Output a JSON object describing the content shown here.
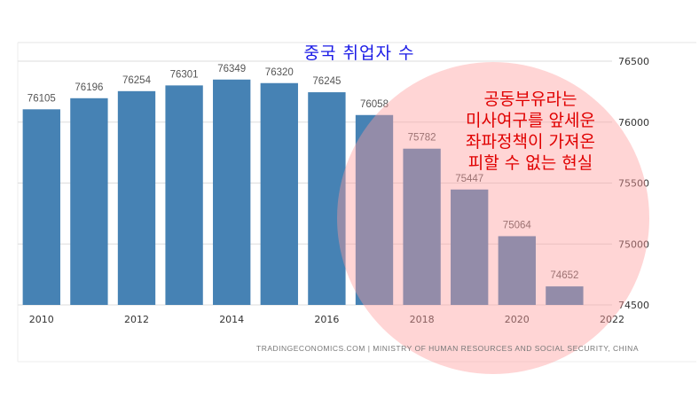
{
  "chart_data": {
    "type": "bar",
    "title": "중국 취업자 수",
    "categories": [
      "2010",
      "2011",
      "2012",
      "2013",
      "2014",
      "2015",
      "2016",
      "2017",
      "2018",
      "2019",
      "2020",
      "2021"
    ],
    "values": [
      76105,
      76196,
      76254,
      76301,
      76349,
      76320,
      76245,
      76058,
      75782,
      75447,
      75064,
      74652
    ],
    "data_labels": [
      "76105",
      "76196",
      "76254",
      "76301",
      "76349",
      "76320",
      "76245",
      "76058",
      "75782",
      "75447",
      "75064",
      "74652"
    ],
    "x_tick_labels": [
      "2010",
      "2012",
      "2014",
      "2016",
      "2018",
      "2020",
      "2022"
    ],
    "y_tick_labels": [
      "76500",
      "76000",
      "75500",
      "75000",
      "74500"
    ],
    "y_ticks": [
      76500,
      76000,
      75500,
      75000,
      74500
    ],
    "ylim": [
      74500,
      76500
    ],
    "y_axis_side": "right",
    "grid": true,
    "xlabel": "",
    "ylabel": "",
    "source": "TRADINGECONOMICS.COM | MINISTRY OF HUMAN RESOURCES AND SOCIAL SECURITY, CHINA",
    "annotation_lines": [
      "공동부유라는",
      "미사여구를 앞세운",
      "좌파정책이 가져온",
      "피할 수 없는 현실"
    ],
    "colors": {
      "bar": "#4682b4",
      "grid": "#dddddd",
      "title": "#1a1ae6",
      "annotation": "#e00000",
      "highlight_circle": "#ff9a9a"
    }
  }
}
